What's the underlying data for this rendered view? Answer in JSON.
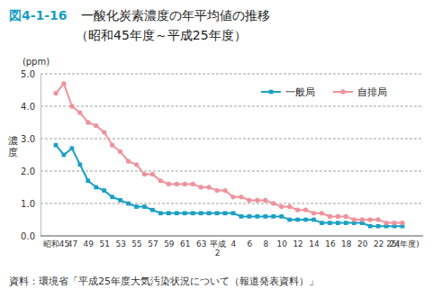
{
  "chart_data": {
    "type": "line",
    "figure_label": "図4-1-16",
    "title": "一酸化炭素濃度の年平均値の推移",
    "subtitle": "（昭和45年度～平成25年度）",
    "y_unit": "(ppm)",
    "y_label": "濃度",
    "source": "資料：環境省「平成25年度大気汚染状況について（報道発表資料）」",
    "categories": [
      "昭和45",
      null,
      "47",
      null,
      "49",
      null,
      "51",
      null,
      "53",
      null,
      "55",
      null,
      "57",
      null,
      "59",
      null,
      "61",
      null,
      "63",
      null,
      "平成2",
      null,
      "4",
      null,
      "6",
      null,
      "8",
      null,
      "10",
      null,
      "12",
      null,
      "14",
      null,
      "16",
      null,
      "18",
      null,
      "20",
      null,
      "22",
      null,
      "24",
      "25(年度)"
    ],
    "series": [
      {
        "name": "一般局",
        "color": "#1aa0c4",
        "marker": "square",
        "values": [
          2.8,
          2.5,
          2.7,
          2.2,
          1.7,
          1.5,
          1.4,
          1.2,
          1.1,
          1.0,
          0.9,
          0.9,
          0.8,
          0.7,
          0.7,
          0.7,
          0.7,
          0.7,
          0.7,
          0.7,
          0.7,
          0.7,
          0.7,
          0.6,
          0.6,
          0.6,
          0.6,
          0.6,
          0.6,
          0.5,
          0.5,
          0.5,
          0.5,
          0.4,
          0.4,
          0.4,
          0.4,
          0.4,
          0.4,
          0.3,
          0.3,
          0.3,
          0.3,
          0.3
        ]
      },
      {
        "name": "自排局",
        "color": "#f0929c",
        "marker": "circle",
        "values": [
          4.4,
          4.7,
          4.0,
          3.8,
          3.5,
          3.4,
          3.2,
          2.8,
          2.6,
          2.3,
          2.2,
          1.9,
          1.9,
          1.7,
          1.6,
          1.6,
          1.6,
          1.6,
          1.5,
          1.5,
          1.4,
          1.4,
          1.2,
          1.2,
          1.1,
          1.1,
          1.1,
          1.0,
          0.9,
          0.9,
          0.8,
          0.8,
          0.7,
          0.7,
          0.6,
          0.6,
          0.6,
          0.5,
          0.5,
          0.5,
          0.5,
          0.4,
          0.4,
          0.4
        ]
      }
    ],
    "ylim": [
      0,
      5
    ],
    "yticks": [
      {
        "value": 0,
        "label": "0.0"
      },
      {
        "value": 1,
        "label": "1.0"
      },
      {
        "value": 2,
        "label": "2.0"
      },
      {
        "value": 3,
        "label": "3.0"
      },
      {
        "value": 4,
        "label": "4.0"
      },
      {
        "value": 5,
        "label": "5.0"
      }
    ],
    "grid": true,
    "legend": "top-right"
  }
}
